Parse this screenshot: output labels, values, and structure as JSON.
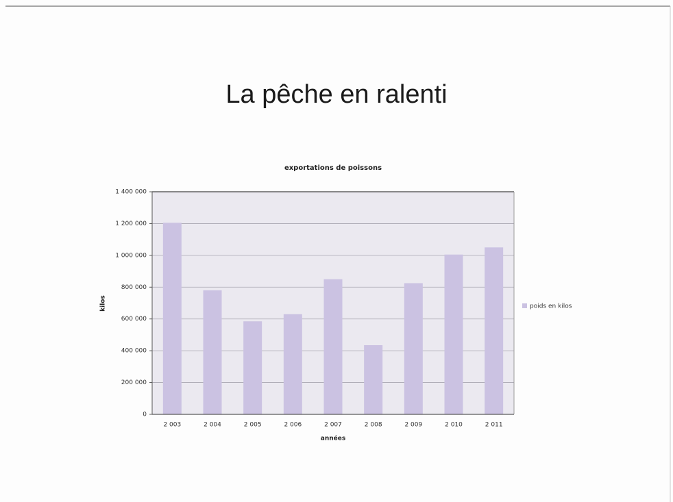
{
  "chart_data": {
    "type": "bar",
    "heading": "La pêche en ralenti",
    "title": "exportations de poissons",
    "x_label": "années",
    "y_label": "kilos",
    "categories": [
      "2 003",
      "2 004",
      "2 005",
      "2 006",
      "2 007",
      "2 008",
      "2 009",
      "2 010",
      "2 011"
    ],
    "series": [
      {
        "name": "poids en kilos",
        "color": "#cbc2e2",
        "values": [
          1205000,
          780000,
          585000,
          630000,
          850000,
          435000,
          825000,
          1005000,
          1050000
        ]
      }
    ],
    "ylim": [
      0,
      1400000
    ],
    "yticks": [
      0,
      {
        "value": 200000,
        "label": "200 000"
      },
      {
        "value": 400000,
        "label": "400 000"
      },
      {
        "value": 600000,
        "label": "600 000"
      },
      {
        "value": 800000,
        "label": "800 000"
      },
      {
        "value": 1000000,
        "label": "1 000 000"
      },
      {
        "value": 1200000,
        "label": "1 200 000"
      },
      {
        "value": 1400000,
        "label": "1 400 000"
      }
    ],
    "grid": true,
    "legend": "right"
  }
}
